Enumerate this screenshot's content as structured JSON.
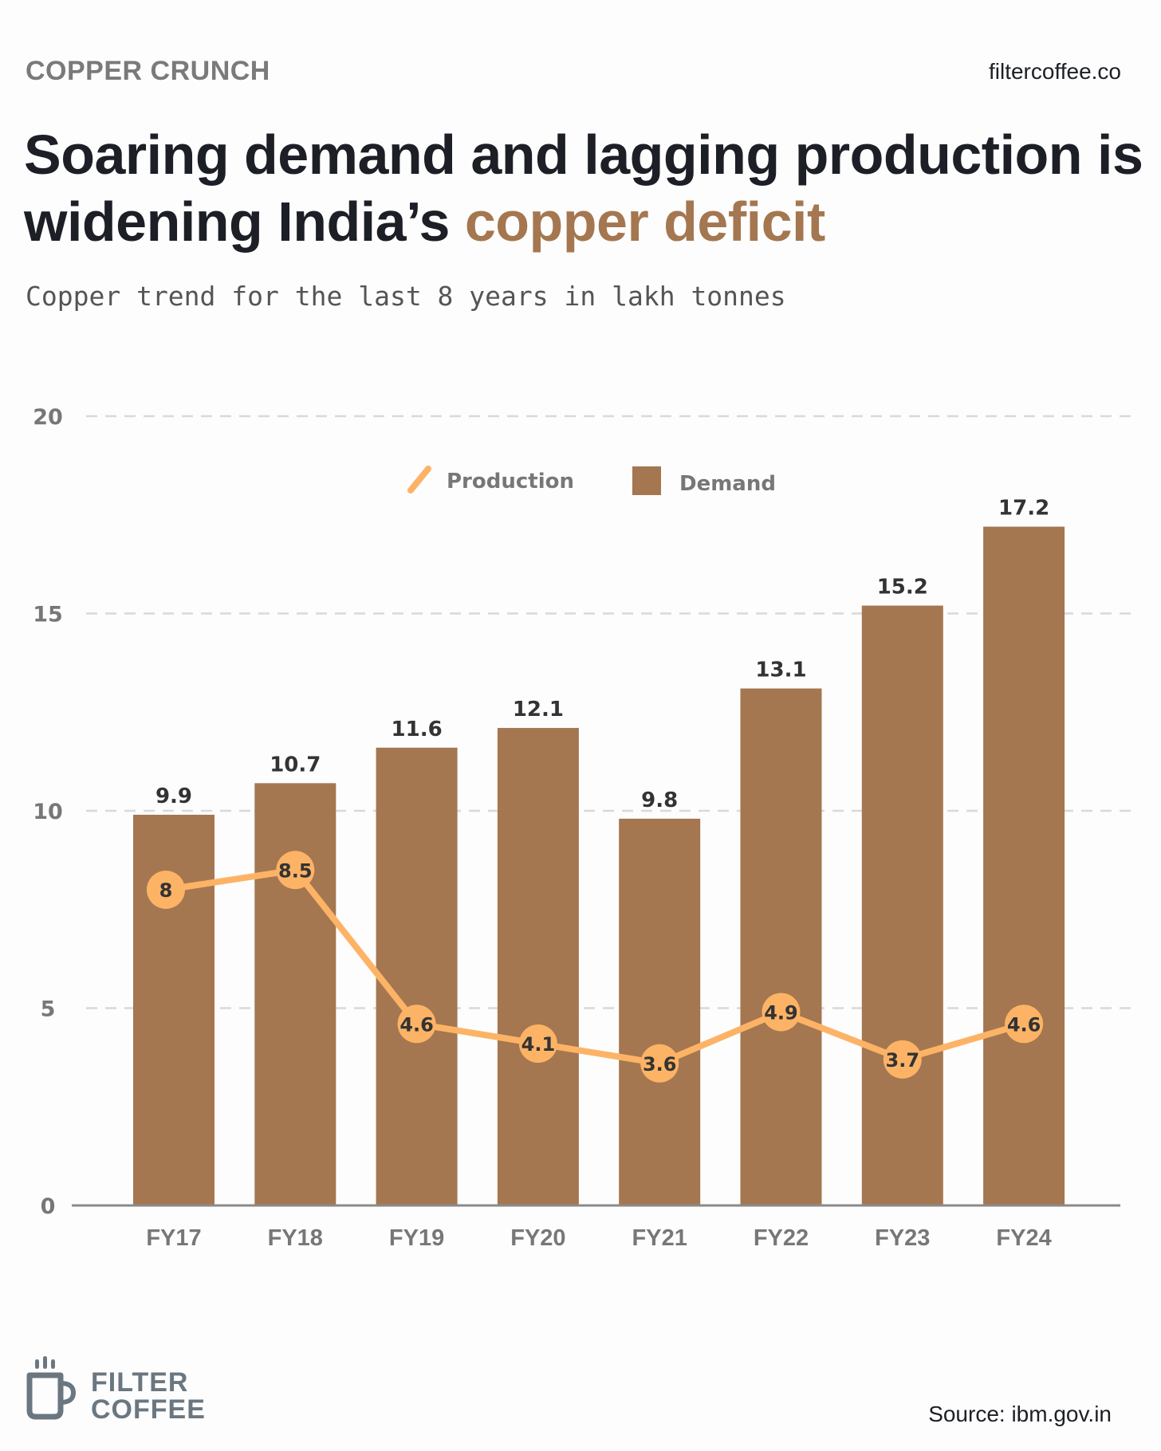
{
  "header": {
    "kicker": "COPPER CRUNCH",
    "site": "filtercoffee.co",
    "headline_main": "Soaring demand and lagging production is widening India’s ",
    "headline_accent": "copper deficit",
    "subtitle": "Copper trend for the last 8 years in lakh tonnes"
  },
  "footer": {
    "brand_line1": "FILTER",
    "brand_line2": "COFFEE",
    "brand_icon": "coffee-mug-icon",
    "source": "Source: ibm.gov.in"
  },
  "colors": {
    "demand": "#a47750",
    "production": "#fdb366",
    "grid": "#d9d9d9",
    "axis": "#8a8a8a",
    "axis_text": "#777777",
    "label_text": "#333333",
    "accent": "#a47750"
  },
  "chart_data": {
    "type": "bar",
    "categories": [
      "FY17",
      "FY18",
      "FY19",
      "FY20",
      "FY21",
      "FY22",
      "FY23",
      "FY24"
    ],
    "series": [
      {
        "name": "Demand",
        "type": "bar",
        "values": [
          9.9,
          10.7,
          11.6,
          12.1,
          9.8,
          13.1,
          15.2,
          17.2
        ]
      },
      {
        "name": "Production",
        "type": "line",
        "values": [
          8,
          8.5,
          4.6,
          4.1,
          3.6,
          4.9,
          3.7,
          4.6
        ]
      }
    ],
    "ylim": [
      0,
      20
    ],
    "yticks": [
      0,
      5,
      10,
      15,
      20
    ],
    "grid": true,
    "legend": "top-center",
    "data_labels": true
  }
}
